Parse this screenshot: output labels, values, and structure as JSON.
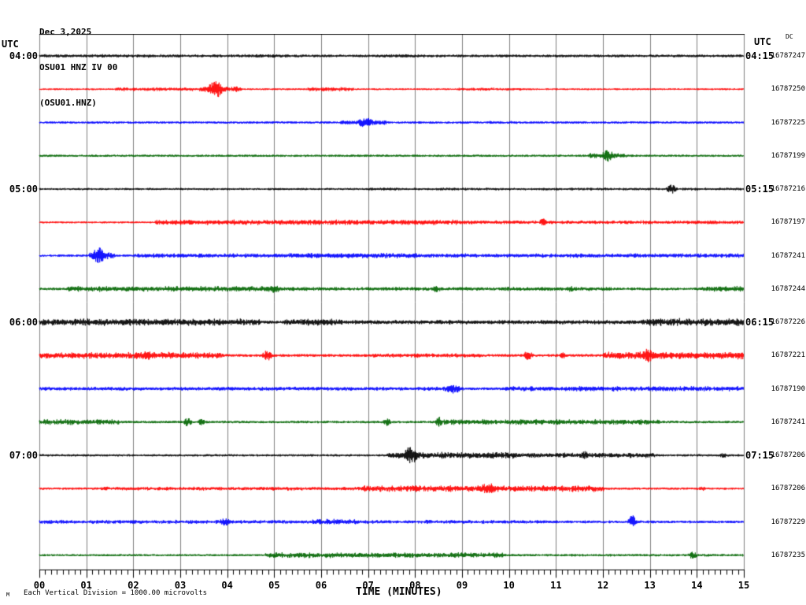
{
  "title": {
    "date": "Dec 3,2025",
    "station": "OSU01 HNZ IV 00",
    "channel": "(OSU01.HNZ)"
  },
  "left_axis": {
    "header": "UTC"
  },
  "right_axis": {
    "header": "UTC",
    "dc_header": "DC"
  },
  "x_axis": {
    "tick_labels": [
      "00",
      "01",
      "02",
      "03",
      "04",
      "05",
      "06",
      "07",
      "08",
      "09",
      "10",
      "11",
      "12",
      "13",
      "14",
      "15"
    ],
    "title": "TIME (MINUTES)",
    "minutes_per_row": 15,
    "minor_divisions_per_minute": 8
  },
  "footer": {
    "logo": "M",
    "scale_note": "Each Vertical Division = 1000.00 microvolts"
  },
  "colors": {
    "black": "#000000",
    "red": "#ff0000",
    "blue": "#0000ff",
    "green": "#006600",
    "grid": "#7f7f7f",
    "frame": "#000000"
  },
  "chart_data": {
    "type": "line",
    "title": "OSU01 HNZ IV 00 helicorder (webicorder) display",
    "x_range_minutes": [
      0,
      15
    ],
    "grid": "vertical gray lines at each minute",
    "legend_position": "none",
    "rows": [
      {
        "utc_left": "04:00",
        "utc_right": "04:15",
        "dc": "16787247",
        "color": "black",
        "base_amp": 1.6,
        "events": [
          {
            "type": "band",
            "start": 0,
            "end": 5.3,
            "amp": 2.0
          },
          {
            "type": "band",
            "start": 7.3,
            "end": 8.2,
            "amp": 2.0
          }
        ]
      },
      {
        "utc_left": "",
        "utc_right": "",
        "dc": "16787250",
        "color": "red",
        "base_amp": 1.1,
        "events": [
          {
            "type": "band",
            "start": 1.6,
            "end": 3.4,
            "amp": 2.2
          },
          {
            "type": "band",
            "start": 3.4,
            "end": 4.3,
            "amp": 3.0
          },
          {
            "type": "spike",
            "center": 3.75,
            "width": 0.12,
            "amp": 11
          },
          {
            "type": "band",
            "start": 5.7,
            "end": 6.7,
            "amp": 2.4
          },
          {
            "type": "band",
            "start": 8.9,
            "end": 10.3,
            "amp": 1.8
          }
        ]
      },
      {
        "utc_left": "",
        "utc_right": "",
        "dc": "16787225",
        "color": "blue",
        "base_amp": 1.4,
        "events": [
          {
            "type": "band",
            "start": 6.4,
            "end": 7.4,
            "amp": 3.2
          },
          {
            "type": "spike",
            "center": 6.95,
            "width": 0.15,
            "amp": 6.5
          },
          {
            "type": "band",
            "start": 9.5,
            "end": 10.2,
            "amp": 1.8
          }
        ]
      },
      {
        "utc_left": "",
        "utc_right": "",
        "dc": "16787199",
        "color": "green",
        "base_amp": 1.4,
        "events": [
          {
            "type": "band",
            "start": 11.7,
            "end": 12.5,
            "amp": 3.0
          },
          {
            "type": "spike",
            "center": 12.1,
            "width": 0.1,
            "amp": 8
          }
        ]
      },
      {
        "utc_left": "05:00",
        "utc_right": "05:15",
        "dc": "16787216",
        "color": "black",
        "base_amp": 1.3,
        "events": [
          {
            "type": "band",
            "start": 7,
            "end": 15,
            "amp": 1.7
          },
          {
            "type": "spike",
            "center": 13.45,
            "width": 0.08,
            "amp": 6
          }
        ]
      },
      {
        "utc_left": "",
        "utc_right": "",
        "dc": "16787197",
        "color": "red",
        "base_amp": 1.2,
        "events": [
          {
            "type": "band",
            "start": 2.45,
            "end": 8.9,
            "amp": 3.2
          },
          {
            "type": "band",
            "start": 8.9,
            "end": 15,
            "amp": 2.2
          },
          {
            "type": "spike",
            "center": 10.72,
            "width": 0.06,
            "amp": 5
          }
        ]
      },
      {
        "utc_left": "",
        "utc_right": "",
        "dc": "16787241",
        "color": "blue",
        "base_amp": 1.4,
        "events": [
          {
            "type": "spike",
            "center": 1.25,
            "width": 0.1,
            "amp": 11
          },
          {
            "type": "band",
            "start": 1.05,
            "end": 1.6,
            "amp": 4.0
          },
          {
            "type": "band",
            "start": 2.0,
            "end": 15,
            "amp": 2.6
          },
          {
            "type": "band",
            "start": 5.3,
            "end": 8.2,
            "amp": 3.1
          }
        ]
      },
      {
        "utc_left": "",
        "utc_right": "",
        "dc": "16787244",
        "color": "green",
        "base_amp": 1.6,
        "events": [
          {
            "type": "band",
            "start": 0.6,
            "end": 5.0,
            "amp": 3.4
          },
          {
            "type": "spike",
            "center": 5.0,
            "width": 0.1,
            "amp": 5
          },
          {
            "type": "band",
            "start": 5.0,
            "end": 12.2,
            "amp": 2.3
          },
          {
            "type": "spike",
            "center": 8.45,
            "width": 0.06,
            "amp": 5
          },
          {
            "type": "spike",
            "center": 11.3,
            "width": 0.05,
            "amp": 4.5
          },
          {
            "type": "band",
            "start": 14.1,
            "end": 15,
            "amp": 3.4
          }
        ]
      },
      {
        "utc_left": "06:00",
        "utc_right": "06:15",
        "dc": "16787226",
        "color": "black",
        "base_amp": 2.0,
        "events": [
          {
            "type": "band",
            "start": 0,
            "end": 4.7,
            "amp": 4.2
          },
          {
            "type": "band",
            "start": 5.2,
            "end": 6.4,
            "amp": 4.0
          },
          {
            "type": "band",
            "start": 6.4,
            "end": 12.8,
            "amp": 2.6
          },
          {
            "type": "band",
            "start": 12.8,
            "end": 15,
            "amp": 4.6
          }
        ]
      },
      {
        "utc_left": "",
        "utc_right": "",
        "dc": "16787221",
        "color": "red",
        "base_amp": 1.7,
        "events": [
          {
            "type": "band",
            "start": 0,
            "end": 3.9,
            "amp": 4.0
          },
          {
            "type": "spike",
            "center": 2.3,
            "width": 0.2,
            "amp": 5.5
          },
          {
            "type": "spike",
            "center": 4.85,
            "width": 0.08,
            "amp": 7
          },
          {
            "type": "band",
            "start": 7.1,
            "end": 9.4,
            "amp": 2.6
          },
          {
            "type": "spike",
            "center": 10.4,
            "width": 0.07,
            "amp": 6.5
          },
          {
            "type": "spike",
            "center": 11.15,
            "width": 0.06,
            "amp": 5
          },
          {
            "type": "band",
            "start": 12.0,
            "end": 15,
            "amp": 4.4
          },
          {
            "type": "spike",
            "center": 12.95,
            "width": 0.1,
            "amp": 9
          }
        ]
      },
      {
        "utc_left": "",
        "utc_right": "",
        "dc": "16787190",
        "color": "blue",
        "base_amp": 1.7,
        "events": [
          {
            "type": "band",
            "start": 0,
            "end": 8.6,
            "amp": 2.3
          },
          {
            "type": "spike",
            "center": 8.8,
            "width": 0.15,
            "amp": 6
          },
          {
            "type": "band",
            "start": 9.9,
            "end": 15,
            "amp": 3.1
          }
        ]
      },
      {
        "utc_left": "",
        "utc_right": "",
        "dc": "16787241",
        "color": "green",
        "base_amp": 1.5,
        "events": [
          {
            "type": "band",
            "start": 0,
            "end": 1.7,
            "amp": 3.4
          },
          {
            "type": "spike",
            "center": 3.15,
            "width": 0.06,
            "amp": 6
          },
          {
            "type": "spike",
            "center": 3.45,
            "width": 0.05,
            "amp": 5
          },
          {
            "type": "spike",
            "center": 7.4,
            "width": 0.06,
            "amp": 5
          },
          {
            "type": "spike",
            "center": 8.5,
            "width": 0.05,
            "amp": 7
          },
          {
            "type": "band",
            "start": 8.6,
            "end": 13.2,
            "amp": 3.2
          },
          {
            "type": "band",
            "start": 13.2,
            "end": 15,
            "amp": 1.2
          }
        ]
      },
      {
        "utc_left": "07:00",
        "utc_right": "07:15",
        "dc": "16787206",
        "color": "black",
        "base_amp": 1.4,
        "events": [
          {
            "type": "band",
            "start": 7.4,
            "end": 10.1,
            "amp": 4.0
          },
          {
            "type": "spike",
            "center": 7.9,
            "width": 0.1,
            "amp": 12
          },
          {
            "type": "band",
            "start": 10.1,
            "end": 13.1,
            "amp": 3.0
          },
          {
            "type": "spike",
            "center": 11.6,
            "width": 0.07,
            "amp": 5.5
          },
          {
            "type": "spike",
            "center": 14.55,
            "width": 0.1,
            "amp": 3
          }
        ]
      },
      {
        "utc_left": "",
        "utc_right": "",
        "dc": "16787206",
        "color": "red",
        "base_amp": 1.4,
        "events": [
          {
            "type": "band",
            "start": 1.3,
            "end": 6.9,
            "amp": 2.3
          },
          {
            "type": "band",
            "start": 6.9,
            "end": 12.0,
            "amp": 3.8
          },
          {
            "type": "spike",
            "center": 9.55,
            "width": 0.12,
            "amp": 8
          },
          {
            "type": "spike",
            "center": 14.1,
            "width": 0.05,
            "amp": 4
          }
        ]
      },
      {
        "utc_left": "",
        "utc_right": "",
        "dc": "16787229",
        "color": "blue",
        "base_amp": 1.5,
        "events": [
          {
            "type": "band",
            "start": 0,
            "end": 10.8,
            "amp": 2.3
          },
          {
            "type": "spike",
            "center": 3.95,
            "width": 0.1,
            "amp": 5
          },
          {
            "type": "band",
            "start": 5.8,
            "end": 6.8,
            "amp": 3.6
          },
          {
            "type": "band",
            "start": 10.8,
            "end": 15,
            "amp": 1.7
          },
          {
            "type": "spike",
            "center": 12.62,
            "width": 0.06,
            "amp": 9
          }
        ]
      },
      {
        "utc_left": "",
        "utc_right": "",
        "dc": "16787235",
        "color": "green",
        "base_amp": 1.3,
        "events": [
          {
            "type": "band",
            "start": 4.8,
            "end": 9.9,
            "amp": 3.3
          },
          {
            "type": "band",
            "start": 9.9,
            "end": 15,
            "amp": 1.5
          },
          {
            "type": "spike",
            "center": 13.9,
            "width": 0.07,
            "amp": 5
          }
        ]
      }
    ]
  }
}
